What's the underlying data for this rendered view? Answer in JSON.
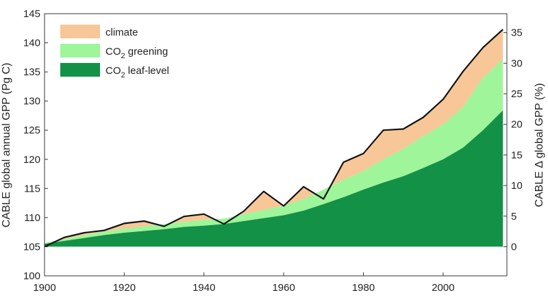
{
  "chart_data": {
    "type": "area",
    "title": "",
    "ylabel_left": "CABLE global annual GPP (Pg C)",
    "ylabel_right": "CABLE Δ global GPP (%)",
    "xlim": [
      1900,
      2016
    ],
    "ylim_left": [
      100,
      145
    ],
    "ylim_right_note": "0% corresponds to 105 Pg C",
    "x_ticks": [
      "1900",
      "1920",
      "1940",
      "1960",
      "1980",
      "2000"
    ],
    "y_ticks_left": [
      "100",
      "105",
      "110",
      "115",
      "120",
      "125",
      "130",
      "135",
      "140",
      "145"
    ],
    "y_ticks_right": [
      "0",
      "5",
      "10",
      "15",
      "20",
      "25",
      "30",
      "35"
    ],
    "colors": {
      "climate": "#f7c797",
      "co2_greening": "#9ef59a",
      "co2_leaf_level": "#139146",
      "total_line": "#111111"
    },
    "legend": [
      {
        "key": "climate",
        "prefix": "climate",
        "sub": "",
        "suffix": ""
      },
      {
        "key": "co2_greening",
        "prefix": "CO",
        "sub": "2",
        "suffix": " greening"
      },
      {
        "key": "co2_leaf_level",
        "prefix": "CO",
        "sub": "2",
        "suffix": " leaf-level"
      }
    ],
    "legend_position": "top-left",
    "baseline": 105,
    "x": [
      1900,
      1905,
      1910,
      1915,
      1920,
      1925,
      1930,
      1935,
      1940,
      1945,
      1950,
      1955,
      1960,
      1965,
      1970,
      1975,
      1980,
      1985,
      1990,
      1995,
      2000,
      2005,
      2010,
      2015
    ],
    "series": [
      {
        "key": "co2_leaf_level",
        "name": "CO2 leaf-level",
        "values": [
          105.5,
          106.0,
          106.5,
          107.0,
          107.4,
          107.7,
          108.0,
          108.4,
          108.6,
          108.9,
          109.4,
          109.9,
          110.4,
          111.2,
          112.3,
          113.5,
          114.8,
          116.0,
          117.1,
          118.5,
          120.0,
          122.0,
          125.0,
          128.4
        ]
      },
      {
        "key": "co2_greening",
        "name": "CO2 greening",
        "values": [
          105.6,
          106.3,
          107.0,
          107.6,
          108.1,
          108.5,
          108.9,
          109.3,
          109.6,
          109.8,
          110.6,
          111.3,
          112.0,
          113.2,
          114.8,
          116.5,
          118.0,
          120.0,
          121.8,
          124.0,
          126.0,
          129.0,
          134.0,
          137.2
        ]
      },
      {
        "key": "total_line",
        "name": "Total",
        "values": [
          105.0,
          106.6,
          107.4,
          107.8,
          109.0,
          109.4,
          108.5,
          110.2,
          110.6,
          108.9,
          111.1,
          114.5,
          112.0,
          115.3,
          113.2,
          119.5,
          121.0,
          125.0,
          125.2,
          127.2,
          130.3,
          135.1,
          139.2,
          142.3
        ]
      }
    ]
  }
}
